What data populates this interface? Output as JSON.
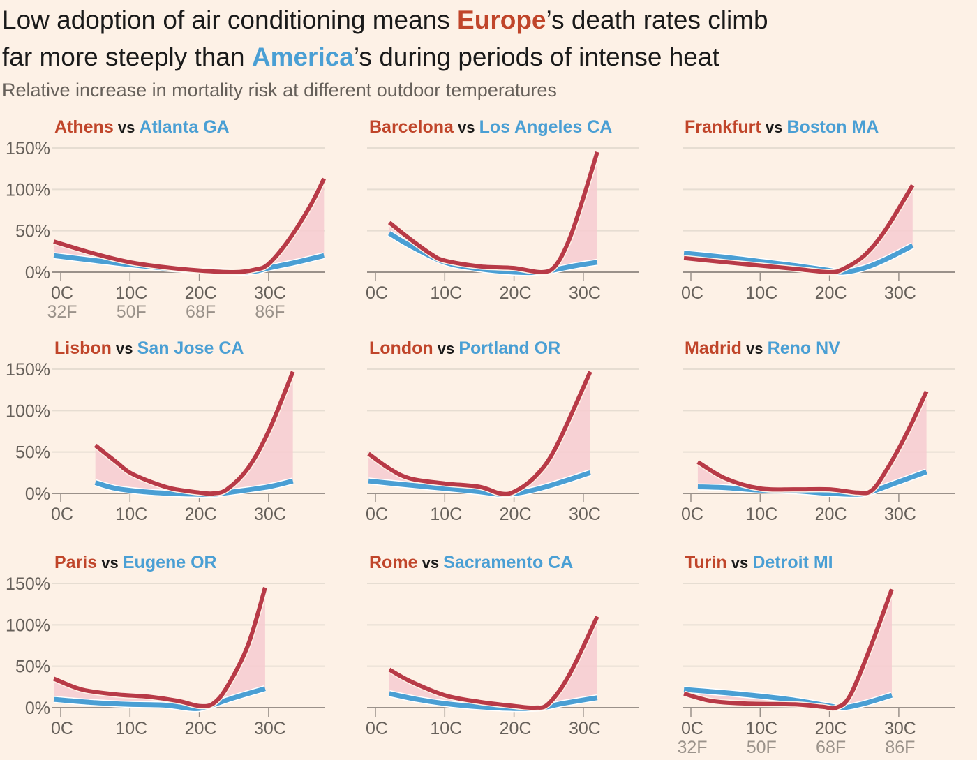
{
  "header": {
    "title_line1_a": "Low adoption of air conditioning means ",
    "title_line1_eu": "Europe",
    "title_line1_b": "’s death rates climb",
    "title_line2_a": "far more steeply than ",
    "title_line2_us": "America",
    "title_line2_b": "’s during periods of intense heat",
    "subtitle": "Relative increase in mortality risk at different outdoor temperatures"
  },
  "colors": {
    "europe": "#b83a47",
    "europe_title": "#c0452a",
    "america": "#4a9fd4",
    "gap_fill": "#f6cbd0",
    "grid": "#e6ddd2",
    "axis": "#9a918a"
  },
  "chart_data": {
    "type": "line",
    "layout": "3x3 small multiples",
    "x_unit": "C",
    "xticks": [
      "0C",
      "10C",
      "20C",
      "30C"
    ],
    "xticks_f": [
      "32F",
      "50F",
      "68F",
      "86F"
    ],
    "yticks": [
      "0%",
      "50%",
      "100%",
      "150%"
    ],
    "ylim": [
      0,
      150
    ],
    "grid": true,
    "vs_label": "vs",
    "panels": [
      {
        "europe": "Athens",
        "america": "Atlanta GA",
        "show_f": true,
        "europe_series": [
          [
            -1,
            37
          ],
          [
            5,
            22
          ],
          [
            10,
            12
          ],
          [
            15,
            6
          ],
          [
            20,
            2
          ],
          [
            25,
            0
          ],
          [
            28,
            3
          ],
          [
            30,
            10
          ],
          [
            33,
            40
          ],
          [
            36,
            80
          ],
          [
            38,
            113
          ]
        ],
        "america_series": [
          [
            -1,
            20
          ],
          [
            5,
            14
          ],
          [
            10,
            9
          ],
          [
            15,
            5
          ],
          [
            20,
            2
          ],
          [
            25,
            0
          ],
          [
            28,
            1
          ],
          [
            30,
            5
          ],
          [
            34,
            12
          ],
          [
            38,
            20
          ]
        ]
      },
      {
        "europe": "Barcelona",
        "america": "Los Angeles CA",
        "show_f": false,
        "europe_series": [
          [
            2,
            60
          ],
          [
            5,
            40
          ],
          [
            8,
            22
          ],
          [
            10,
            14
          ],
          [
            15,
            7
          ],
          [
            20,
            5
          ],
          [
            24,
            0
          ],
          [
            26,
            8
          ],
          [
            28,
            40
          ],
          [
            30,
            90
          ],
          [
            32,
            145
          ]
        ],
        "america_series": [
          [
            2,
            47
          ],
          [
            5,
            32
          ],
          [
            10,
            12
          ],
          [
            15,
            4
          ],
          [
            20,
            0
          ],
          [
            24,
            0
          ],
          [
            26,
            3
          ],
          [
            29,
            8
          ],
          [
            32,
            12
          ]
        ]
      },
      {
        "europe": "Frankfurt",
        "america": "Boston MA",
        "show_f": false,
        "europe_series": [
          [
            -1,
            17
          ],
          [
            5,
            12
          ],
          [
            10,
            8
          ],
          [
            15,
            4
          ],
          [
            20,
            0
          ],
          [
            22,
            4
          ],
          [
            25,
            20
          ],
          [
            28,
            50
          ],
          [
            32,
            105
          ]
        ],
        "america_series": [
          [
            -1,
            23
          ],
          [
            5,
            18
          ],
          [
            10,
            13
          ],
          [
            15,
            8
          ],
          [
            20,
            2
          ],
          [
            22,
            0
          ],
          [
            25,
            5
          ],
          [
            28,
            15
          ],
          [
            32,
            32
          ]
        ]
      },
      {
        "europe": "Lisbon",
        "america": "San Jose CA",
        "show_f": false,
        "europe_series": [
          [
            5,
            58
          ],
          [
            8,
            38
          ],
          [
            10,
            25
          ],
          [
            13,
            14
          ],
          [
            16,
            6
          ],
          [
            20,
            1
          ],
          [
            22,
            0
          ],
          [
            24,
            5
          ],
          [
            27,
            30
          ],
          [
            30,
            75
          ],
          [
            33.5,
            147
          ]
        ],
        "america_series": [
          [
            5,
            13
          ],
          [
            8,
            6
          ],
          [
            12,
            2
          ],
          [
            16,
            0
          ],
          [
            20,
            -1
          ],
          [
            22,
            -1
          ],
          [
            25,
            2
          ],
          [
            30,
            8
          ],
          [
            33.5,
            15
          ]
        ]
      },
      {
        "europe": "London",
        "america": "Portland OR",
        "show_f": false,
        "europe_series": [
          [
            -1,
            48
          ],
          [
            2,
            30
          ],
          [
            5,
            18
          ],
          [
            10,
            12
          ],
          [
            15,
            8
          ],
          [
            18,
            0
          ],
          [
            20,
            2
          ],
          [
            23,
            20
          ],
          [
            26,
            55
          ],
          [
            31,
            147
          ]
        ],
        "america_series": [
          [
            -1,
            15
          ],
          [
            5,
            10
          ],
          [
            10,
            6
          ],
          [
            15,
            2
          ],
          [
            18,
            -1
          ],
          [
            21,
            1
          ],
          [
            25,
            9
          ],
          [
            31,
            25
          ]
        ]
      },
      {
        "europe": "Madrid",
        "america": "Reno NV",
        "show_f": false,
        "europe_series": [
          [
            1,
            38
          ],
          [
            5,
            18
          ],
          [
            10,
            6
          ],
          [
            15,
            5
          ],
          [
            20,
            5
          ],
          [
            24,
            1
          ],
          [
            26,
            3
          ],
          [
            28,
            25
          ],
          [
            31,
            70
          ],
          [
            34,
            123
          ]
        ],
        "america_series": [
          [
            1,
            8
          ],
          [
            5,
            7
          ],
          [
            10,
            4
          ],
          [
            15,
            3
          ],
          [
            20,
            0
          ],
          [
            24,
            -1
          ],
          [
            26,
            2
          ],
          [
            30,
            14
          ],
          [
            34,
            26
          ]
        ]
      },
      {
        "europe": "Paris",
        "america": "Eugene OR",
        "show_f": false,
        "europe_series": [
          [
            -1,
            35
          ],
          [
            3,
            22
          ],
          [
            8,
            16
          ],
          [
            13,
            13
          ],
          [
            17,
            8
          ],
          [
            20,
            2
          ],
          [
            22,
            5
          ],
          [
            24,
            25
          ],
          [
            27,
            75
          ],
          [
            29.5,
            145
          ]
        ],
        "america_series": [
          [
            -1,
            10
          ],
          [
            5,
            6
          ],
          [
            10,
            4
          ],
          [
            15,
            3
          ],
          [
            19,
            -1
          ],
          [
            21,
            1
          ],
          [
            25,
            12
          ],
          [
            29.5,
            23
          ]
        ]
      },
      {
        "europe": "Rome",
        "america": "Sacramento CA",
        "show_f": false,
        "europe_series": [
          [
            2,
            46
          ],
          [
            5,
            32
          ],
          [
            10,
            15
          ],
          [
            15,
            7
          ],
          [
            20,
            2
          ],
          [
            23,
            0
          ],
          [
            25,
            5
          ],
          [
            28,
            40
          ],
          [
            32,
            110
          ]
        ],
        "america_series": [
          [
            2,
            17
          ],
          [
            6,
            10
          ],
          [
            10,
            5
          ],
          [
            15,
            1
          ],
          [
            20,
            -1
          ],
          [
            24,
            0
          ],
          [
            27,
            5
          ],
          [
            32,
            12
          ]
        ]
      },
      {
        "europe": "Turin",
        "america": "Detroit MI",
        "show_f": true,
        "europe_series": [
          [
            -1,
            17
          ],
          [
            3,
            8
          ],
          [
            8,
            5
          ],
          [
            15,
            4
          ],
          [
            19,
            1
          ],
          [
            21,
            0
          ],
          [
            23,
            15
          ],
          [
            26,
            75
          ],
          [
            29,
            143
          ]
        ],
        "america_series": [
          [
            -1,
            22
          ],
          [
            5,
            18
          ],
          [
            10,
            14
          ],
          [
            15,
            9
          ],
          [
            20,
            2
          ],
          [
            22,
            0
          ],
          [
            25,
            5
          ],
          [
            29,
            15
          ]
        ]
      }
    ]
  }
}
